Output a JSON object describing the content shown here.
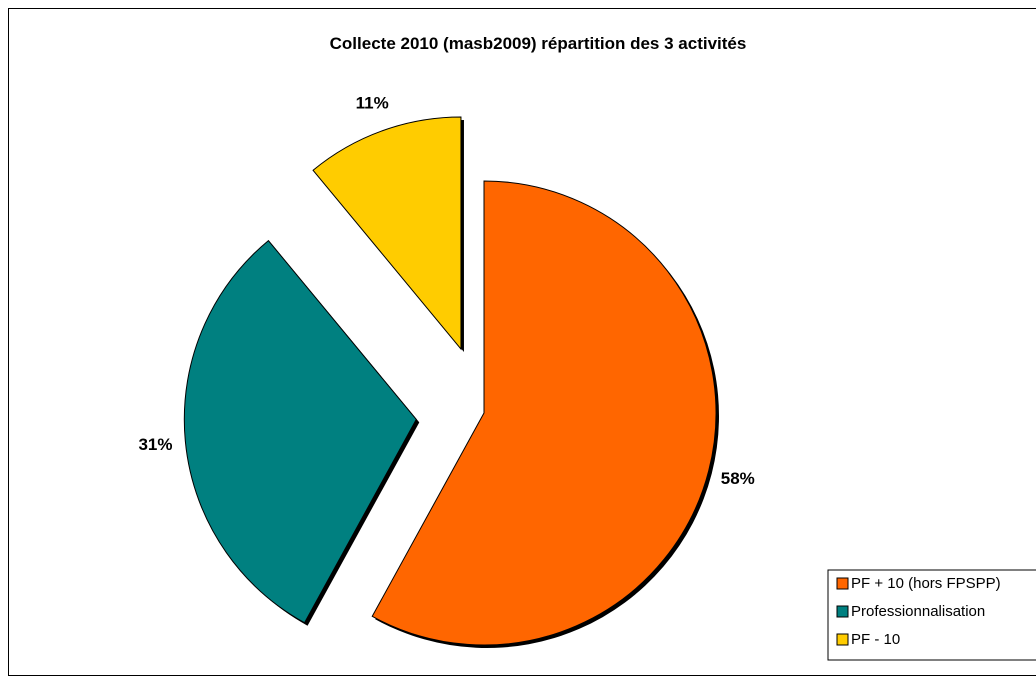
{
  "chart_data": {
    "type": "pie",
    "title": "Collecte 2010 (masb2009) répartition des 3 activités",
    "slices": [
      {
        "label": "PF + 10 (hors FPSPP)",
        "value": 58,
        "display": "58%",
        "color": "#FF6600",
        "exploded": false
      },
      {
        "label": "Professionnalisation",
        "value": 31,
        "display": "31%",
        "color": "#008080",
        "exploded": true
      },
      {
        "label": "PF - 10",
        "value": 11,
        "display": "11%",
        "color": "#FFCC00",
        "exploded": true
      }
    ],
    "legend_position": "bottom-right",
    "start_angle_deg": 0,
    "direction": "clockwise"
  },
  "colors": {
    "decor": "#E8501E"
  }
}
